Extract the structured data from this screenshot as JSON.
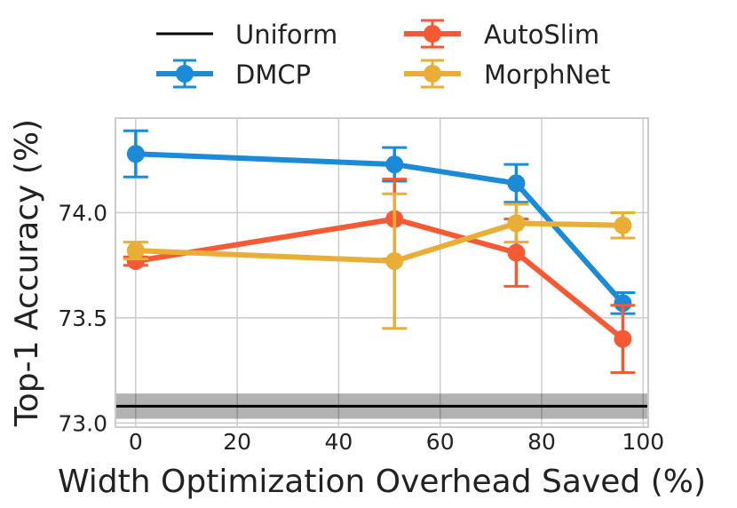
{
  "chart_data": {
    "type": "line",
    "title": "",
    "xlabel": "Width Optimization Overhead Saved (%)",
    "ylabel": "Top-1 Accuracy (%)",
    "xlim": [
      -4,
      101
    ],
    "ylim": [
      72.98,
      74.45
    ],
    "xticks": [
      0,
      20,
      40,
      60,
      80,
      100
    ],
    "xtick_labels": [
      "0",
      "20",
      "40",
      "60",
      "80",
      "100"
    ],
    "yticks": [
      73.0,
      73.5,
      74.0
    ],
    "ytick_labels": [
      "73.0",
      "73.5",
      "74.0"
    ],
    "grid": true,
    "legend_position": "top, outside, two columns",
    "baseline": {
      "name": "Uniform",
      "color": "#000000",
      "value": 73.08,
      "band": [
        73.02,
        73.14
      ]
    },
    "series": [
      {
        "name": "DMCP",
        "color": "#1B8BD8",
        "x": [
          0,
          51,
          75,
          96
        ],
        "y": [
          74.28,
          74.23,
          74.14,
          73.57
        ],
        "err": [
          0.11,
          0.08,
          0.09,
          0.05
        ]
      },
      {
        "name": "AutoSlim",
        "color": "#F55A35",
        "x": [
          0,
          51,
          75,
          96
        ],
        "y": [
          73.77,
          73.97,
          73.81,
          73.4
        ],
        "err": [
          0.02,
          0.19,
          0.16,
          0.16
        ]
      },
      {
        "name": "MorphNet",
        "color": "#E8AE36",
        "x": [
          0,
          51,
          75,
          96
        ],
        "y": [
          73.82,
          73.77,
          73.95,
          73.94
        ],
        "err": [
          0.04,
          0.32,
          0.09,
          0.06
        ]
      }
    ]
  }
}
